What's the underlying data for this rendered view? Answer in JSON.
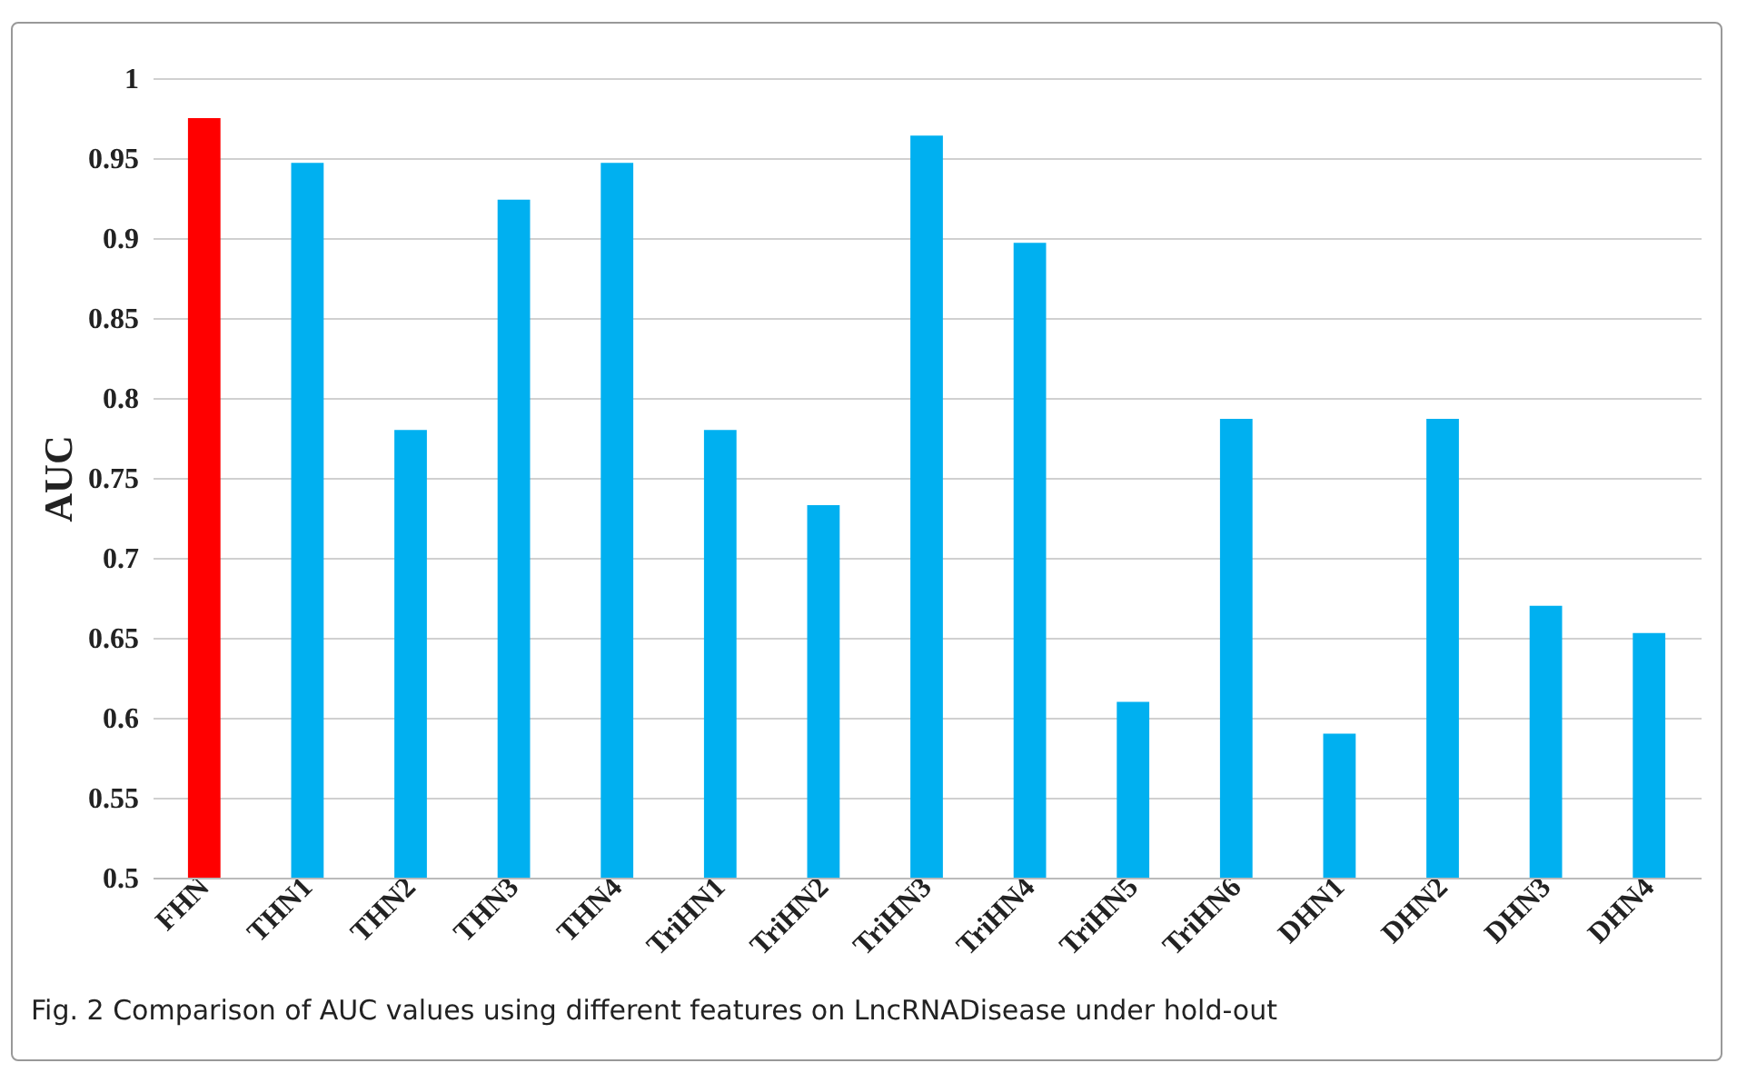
{
  "chart_data": {
    "type": "bar",
    "ylabel": "AUC",
    "categories": [
      "FHN",
      "THN1",
      "THN2",
      "THN3",
      "THN4",
      "TriHN1",
      "TriHN2",
      "TriHN3",
      "TriHN4",
      "TriHN5",
      "TriHN6",
      "DHN1",
      "DHN2",
      "DHN3",
      "DHN4"
    ],
    "values": [
      0.975,
      0.947,
      0.78,
      0.924,
      0.947,
      0.78,
      0.733,
      0.964,
      0.897,
      0.61,
      0.787,
      0.59,
      0.787,
      0.67,
      0.653
    ],
    "colors": [
      "#ff0000",
      "#00b0f0",
      "#00b0f0",
      "#00b0f0",
      "#00b0f0",
      "#00b0f0",
      "#00b0f0",
      "#00b0f0",
      "#00b0f0",
      "#00b0f0",
      "#00b0f0",
      "#00b0f0",
      "#00b0f0",
      "#00b0f0",
      "#00b0f0"
    ],
    "ylim": [
      0.5,
      1
    ],
    "yticks": [
      0.5,
      0.55,
      0.6,
      0.65,
      0.7,
      0.75,
      0.8,
      0.85,
      0.9,
      0.95,
      1
    ],
    "grid": "y",
    "annotations": [
      "Fig. 2  Comparison of AUC values using different features on LncRNADisease under hold-out"
    ]
  }
}
